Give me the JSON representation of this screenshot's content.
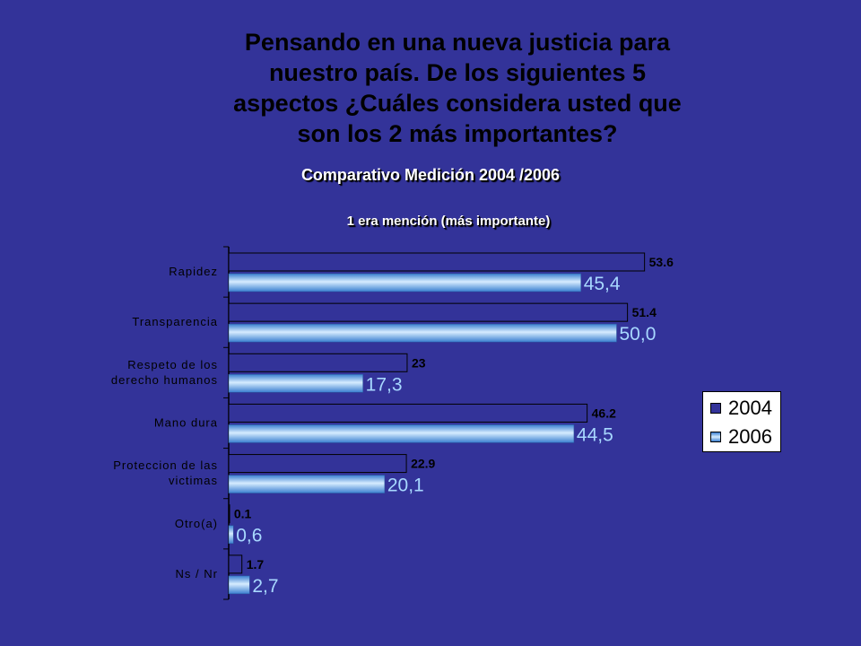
{
  "title": "Pensando en una nueva justicia para\nnuestro país. De los siguientes 5\naspectos  ¿Cuáles considera usted que\nson los 2 más importantes?",
  "subtitle": "Comparativo Medición 2004 /2006",
  "sub2": "1 era mención (más importante)",
  "chart_data": {
    "type": "bar",
    "orientation": "horizontal",
    "categories": [
      "Rapidez",
      "Transparencia",
      "Respeto de los\nderecho humanos",
      "Mano dura",
      "Proteccion de las\nvictimas",
      "Otro(a)",
      "Ns / Nr"
    ],
    "series": [
      {
        "name": "2004",
        "values": [
          53.6,
          51.4,
          23,
          46.2,
          22.9,
          0.1,
          1.7
        ],
        "labels": [
          "53.6",
          "51.4",
          "23",
          "46.2",
          "22.9",
          "0.1",
          "1.7"
        ],
        "color": "#333399"
      },
      {
        "name": "2006",
        "values": [
          45.4,
          50.0,
          17.3,
          44.5,
          20.1,
          0.6,
          2.7
        ],
        "labels": [
          "45,4",
          "50,0",
          "17,3",
          "44,5",
          "20,1",
          "0,6",
          "2,7"
        ],
        "color": "#66aaee"
      }
    ],
    "xlim": [
      0,
      60
    ],
    "grid": false,
    "legend_position": "right"
  },
  "colors": {
    "background": "#333399",
    "series_2004": "#333399",
    "series_2006_light": "#b8dcff",
    "series_2006_dark": "#3a7fd0"
  }
}
